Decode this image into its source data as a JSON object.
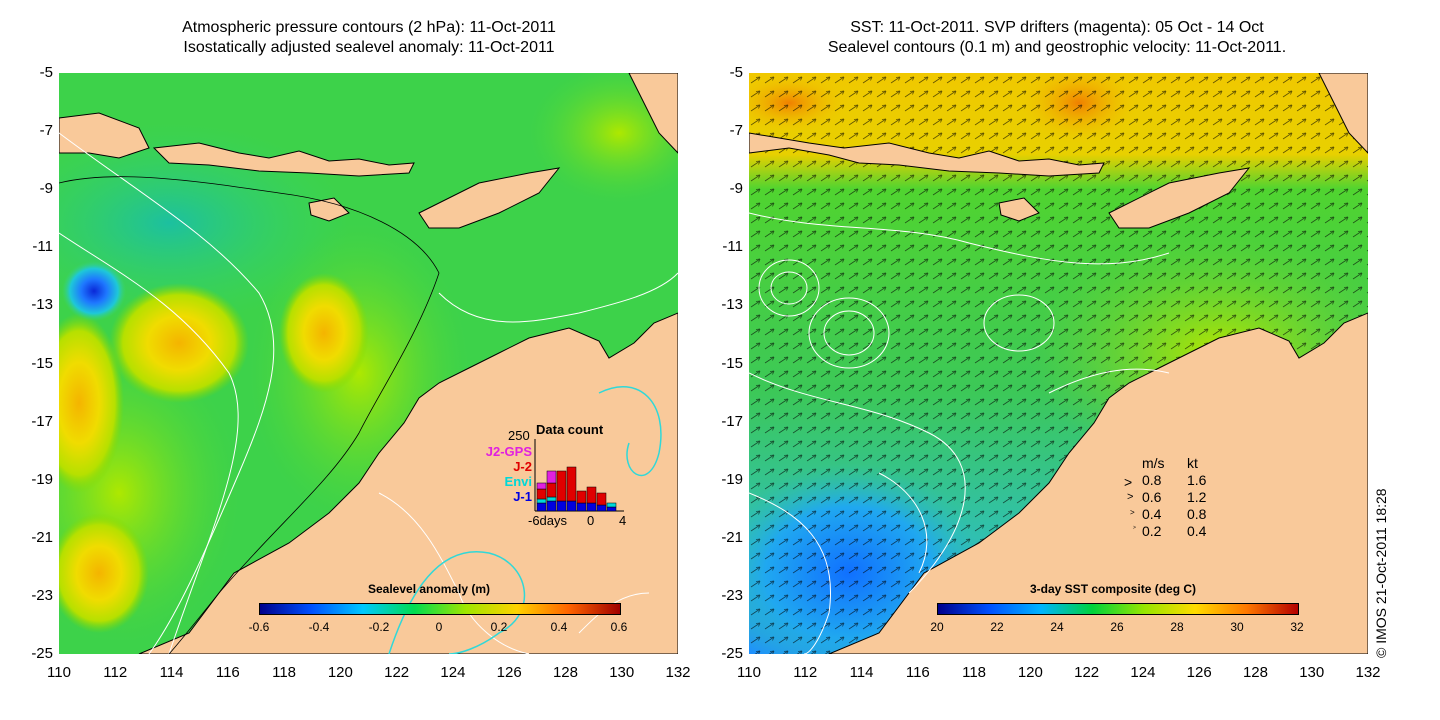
{
  "left_panel": {
    "title_line1": "Atmospheric pressure contours (2 hPa): 11-Oct-2011",
    "title_line2": "Isostatically adjusted sealevel anomaly: 11-Oct-2011",
    "colorbar": {
      "label": "Sealevel anomaly (m)",
      "ticks": [
        "-0.6",
        "-0.4",
        "-0.2",
        "0",
        "0.2",
        "0.4",
        "0.6"
      ],
      "colors": [
        "#00008c",
        "#0050ff",
        "#00c8ff",
        "#00dc50",
        "#a0e600",
        "#ffd200",
        "#ff6400",
        "#a00000"
      ]
    },
    "data_count": {
      "title": "Data count",
      "max_label": "250",
      "missions": [
        {
          "name": "J2-GPS",
          "color": "#e020e0"
        },
        {
          "name": "J-2",
          "color": "#e00000"
        },
        {
          "name": "Envi",
          "color": "#00d8d8"
        },
        {
          "name": "J-1",
          "color": "#0000e0"
        }
      ],
      "x_start": "-6days",
      "x_mid": "0",
      "x_end": "4"
    }
  },
  "right_panel": {
    "title_line1": "SST: 11-Oct-2011. SVP drifters (magenta): 05 Oct - 14 Oct",
    "title_line2": "Sealevel contours (0.1 m) and geostrophic velocity: 11-Oct-2011.",
    "colorbar": {
      "label": "3-day SST composite (deg C)",
      "ticks": [
        "20",
        "22",
        "24",
        "26",
        "28",
        "30",
        "32"
      ],
      "colors": [
        "#00008c",
        "#0050ff",
        "#00b4ff",
        "#00d23c",
        "#96e600",
        "#ffdc00",
        "#ff7800",
        "#b40000"
      ]
    },
    "velocity_legend": {
      "header_ms": "m/s",
      "header_kt": "kt",
      "rows": [
        {
          "ms": "0.8",
          "kt": "1.6"
        },
        {
          "ms": "0.6",
          "kt": "1.2"
        },
        {
          "ms": "0.4",
          "kt": "0.8"
        },
        {
          "ms": "0.2",
          "kt": "0.4"
        }
      ]
    }
  },
  "axes": {
    "lat_ticks": [
      "-5",
      "-7",
      "-9",
      "-11",
      "-13",
      "-15",
      "-17",
      "-19",
      "-21",
      "-23",
      "-25"
    ],
    "lon_ticks": [
      "110",
      "112",
      "114",
      "116",
      "118",
      "120",
      "122",
      "124",
      "126",
      "128",
      "130",
      "132"
    ],
    "lat_range": [
      -25,
      -5
    ],
    "lon_range": [
      110,
      132
    ]
  },
  "colors": {
    "land": "#f9c99a",
    "contour": "#ffffff",
    "coast": "#000000"
  },
  "credit": "© IMOS 21-Oct-2011 18:28"
}
